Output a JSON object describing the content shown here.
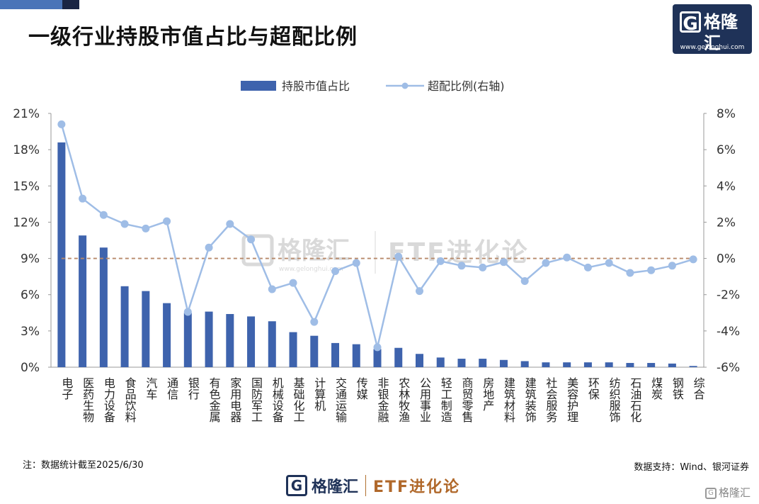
{
  "title": "一级行业持股市值占比与超配比例",
  "logo": {
    "name": "格隆汇",
    "url": "www.gelonghui.com"
  },
  "watermark": {
    "name": "格隆汇",
    "url": "www.gelonghui.com",
    "etf": "ETF进化论"
  },
  "note": "注：数据统计截至2025/6/30",
  "source": "数据支持：Wind、银河证券",
  "footer": {
    "name": "格隆汇",
    "etf": "ETF进化论"
  },
  "corner_watermark": "格隆汇",
  "colors": {
    "bar": "#3e63ad",
    "line": "#9fbde6",
    "zero_line": "#b7896a",
    "accent": "#1f3258"
  },
  "chart_data": {
    "type": "bar",
    "categories": [
      "电子",
      "医药生物",
      "电力设备",
      "食品饮料",
      "汽车",
      "通信",
      "银行",
      "有色金属",
      "家用电器",
      "国防军工",
      "机械设备",
      "基础化工",
      "计算机",
      "交通运输",
      "传媒",
      "非银金融",
      "农林牧渔",
      "公用事业",
      "轻工制造",
      "商贸零售",
      "房地产",
      "建筑材料",
      "建筑装饰",
      "社会服务",
      "美容护理",
      "环保",
      "纺织服饰",
      "石油石化",
      "煤炭",
      "钢铁",
      "综合"
    ],
    "series": [
      {
        "name": "持股市值占比",
        "type": "bar",
        "axis": "left",
        "values": [
          18.6,
          10.9,
          9.9,
          6.7,
          6.3,
          5.3,
          4.5,
          4.6,
          4.4,
          4.2,
          3.8,
          2.9,
          2.6,
          2.0,
          1.9,
          1.5,
          1.6,
          1.1,
          0.8,
          0.7,
          0.7,
          0.6,
          0.5,
          0.4,
          0.4,
          0.4,
          0.4,
          0.35,
          0.35,
          0.3,
          0.1
        ]
      },
      {
        "name": "超配比例(右轴)",
        "type": "line",
        "axis": "right",
        "values": [
          7.4,
          3.3,
          2.4,
          1.9,
          1.65,
          2.05,
          -2.95,
          0.6,
          1.9,
          1.05,
          -1.7,
          -1.35,
          -3.5,
          -0.7,
          -0.25,
          -4.9,
          0.1,
          -1.8,
          -0.15,
          -0.4,
          -0.5,
          -0.2,
          -1.25,
          -0.25,
          0.05,
          -0.5,
          -0.25,
          -0.8,
          -0.65,
          -0.4,
          -0.05
        ]
      }
    ],
    "y_left": {
      "range": [
        0,
        21
      ],
      "ticks": [
        "0%",
        "3%",
        "6%",
        "9%",
        "12%",
        "15%",
        "18%",
        "21%"
      ]
    },
    "y_right": {
      "range": [
        -6,
        8
      ],
      "ticks": [
        "-6%",
        "-4%",
        "-2%",
        "0%",
        "2%",
        "4%",
        "6%",
        "8%"
      ]
    },
    "legend": [
      "持股市值占比",
      "超配比例(右轴)"
    ],
    "legend_position": "top-center",
    "grid": false
  }
}
